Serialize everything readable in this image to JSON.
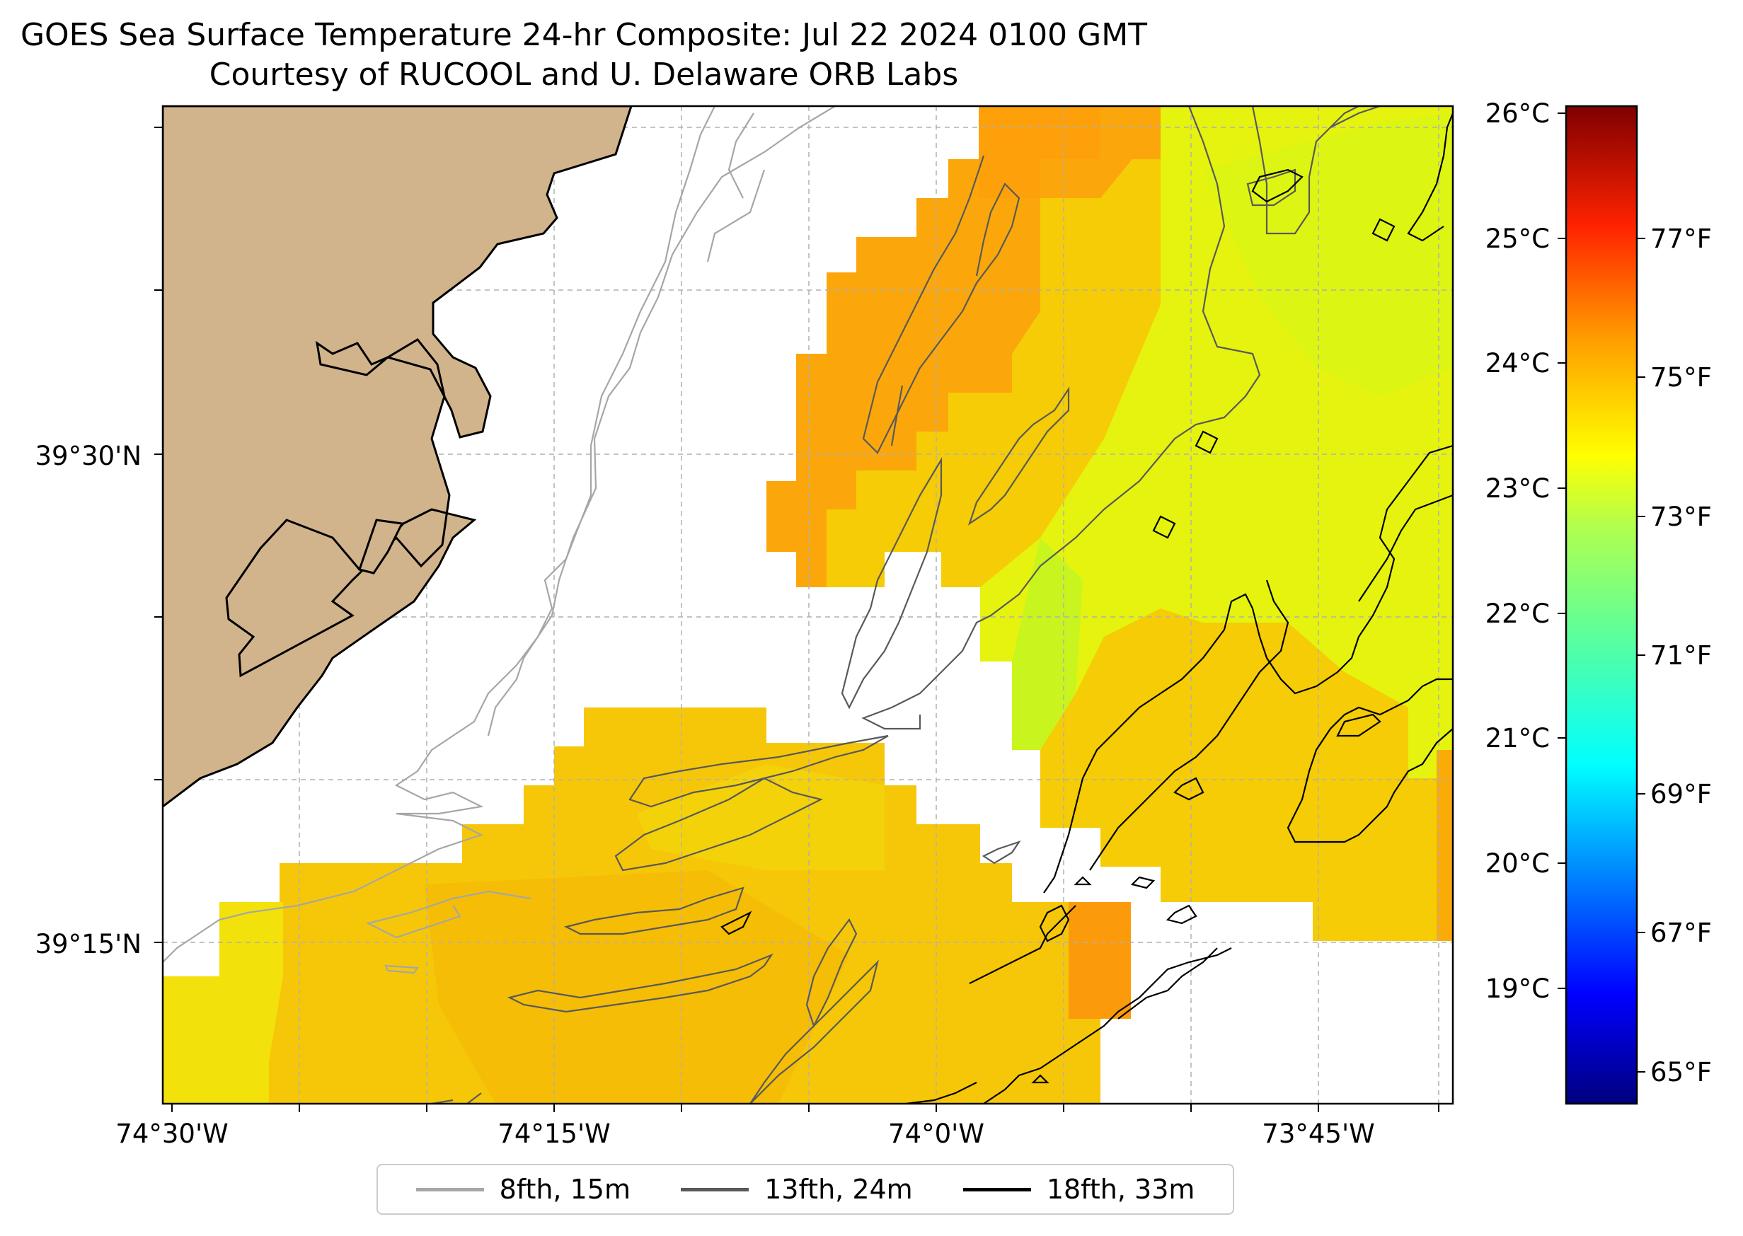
{
  "figure": {
    "title": "GOES Sea Surface Temperature 24-hr Composite: Jul 22 2024 0100 GMT",
    "subtitle": "Courtesy of RUCOOL and U. Delaware ORB Labs"
  },
  "map": {
    "lon_ticks": [
      "74°30'W",
      "74°15'W",
      "74°0'W",
      "73°45'W"
    ],
    "lat_ticks": [
      "39°30'N",
      "39°15'N"
    ],
    "land_color": "#d2b48c",
    "grid": true
  },
  "colorbar": {
    "celsius_ticks": [
      "26°C",
      "25°C",
      "24°C",
      "23°C",
      "22°C",
      "21°C",
      "20°C",
      "19°C"
    ],
    "fahrenheit_ticks": [
      "77°F",
      "75°F",
      "73°F",
      "71°F",
      "69°F",
      "67°F",
      "65°F"
    ],
    "colormap": "jet",
    "colors": [
      "#00007f",
      "#0000ff",
      "#007fff",
      "#00ffff",
      "#7fff7f",
      "#ffff00",
      "#ff7f00",
      "#ff0000",
      "#7f0000"
    ]
  },
  "legend": {
    "items": [
      {
        "label": "8fth, 15m",
        "color": "#a6a6a6"
      },
      {
        "label": "13fth, 24m",
        "color": "#595959"
      },
      {
        "label": "18fth, 33m",
        "color": "#000000"
      }
    ]
  }
}
